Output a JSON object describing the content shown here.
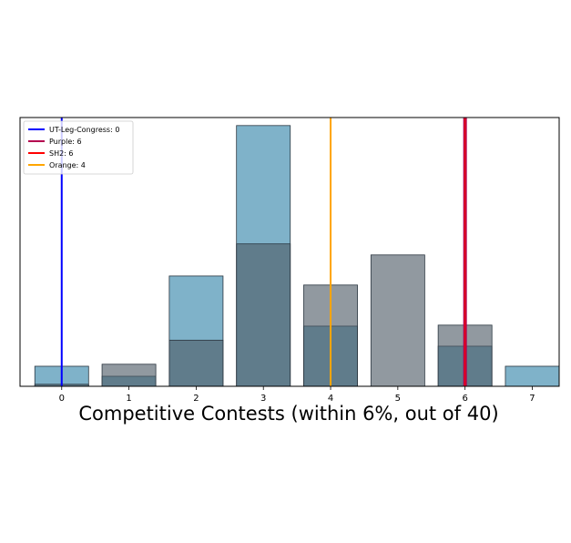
{
  "chart_data": {
    "type": "bar",
    "xlabel": "Competitive Contests (within 6%, out of 40)",
    "categories": [
      "0",
      "1",
      "2",
      "3",
      "4",
      "5",
      "6",
      "7"
    ],
    "x": [
      0,
      1,
      2,
      3,
      4,
      5,
      6,
      7
    ],
    "series": [
      {
        "color": "#7fb2c9",
        "opacity": 1,
        "values": [
          2,
          1,
          11,
          26,
          6,
          0,
          4,
          2
        ]
      },
      {
        "color": "#4d5a66",
        "opacity": 0.62,
        "values": [
          0.2,
          2.2,
          4.6,
          14.2,
          10.1,
          13.1,
          6.1,
          0
        ]
      }
    ],
    "ylim": [
      0,
      26.8
    ],
    "xlim": [
      -0.62,
      7.4
    ],
    "show_yticks": false,
    "grid": false,
    "vlines": [
      {
        "label": "UT-Leg-Congress: 0",
        "x": 0,
        "color": "#0000ff",
        "width": 2
      },
      {
        "label": "Purple: 6",
        "x": 6,
        "color": "#b4004e",
        "width": 4
      },
      {
        "label": "SH2: 6",
        "x": 6,
        "color": "#ff0000",
        "width": 1
      },
      {
        "label": "Orange: 4",
        "x": 4,
        "color": "#ffa500",
        "width": 2
      }
    ],
    "legend": {
      "position": "top-left",
      "entries": [
        "UT-Leg-Congress: 0",
        "Purple: 6",
        "SH2: 6",
        "Orange: 4"
      ],
      "colors": [
        "#0000ff",
        "#b4004e",
        "#ff0000",
        "#ffa500"
      ]
    }
  }
}
